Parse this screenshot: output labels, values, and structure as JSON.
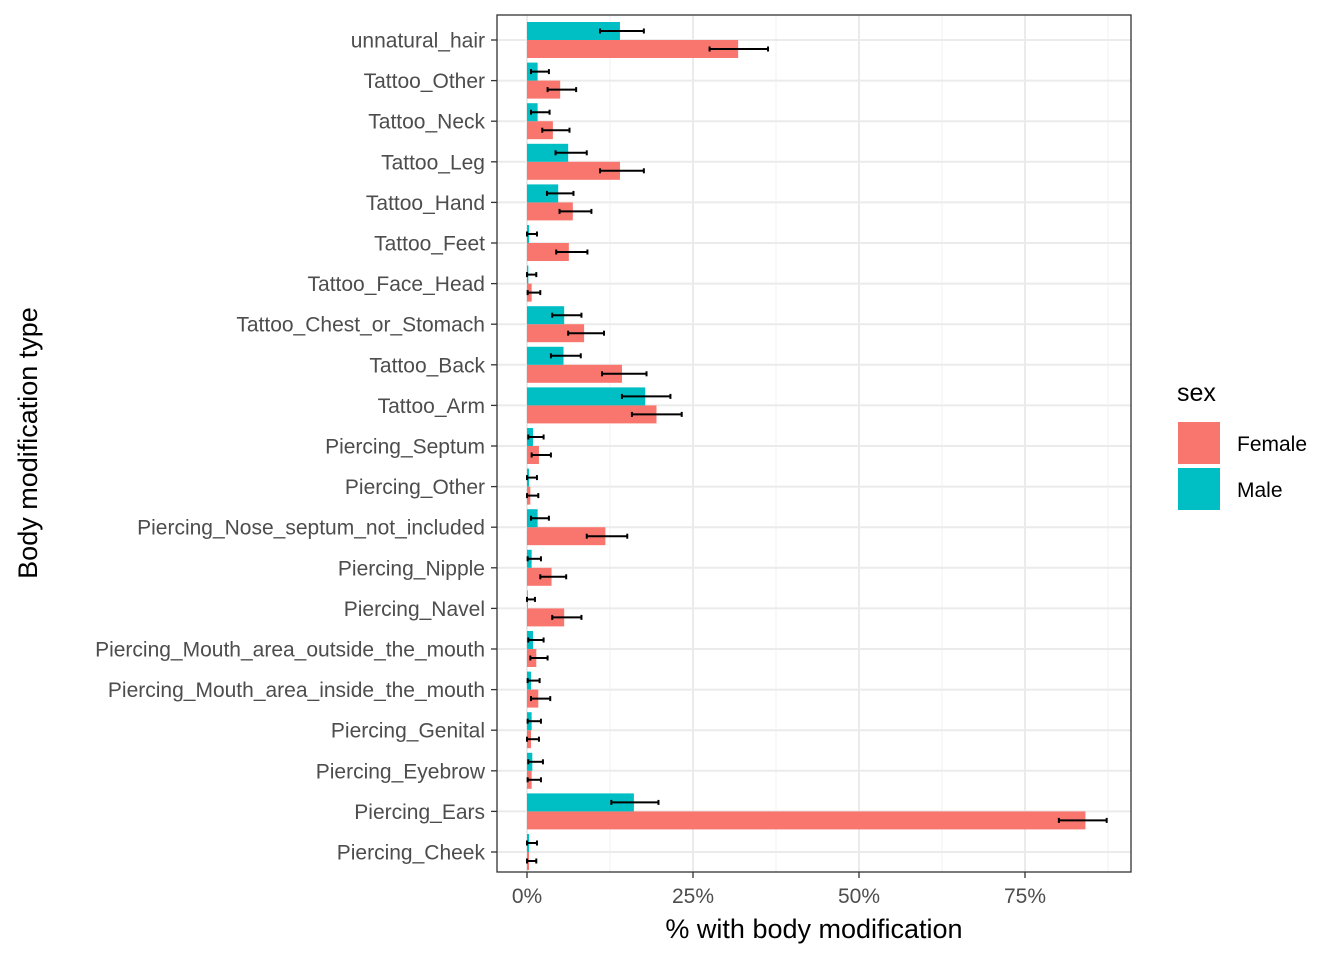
{
  "chart_data": {
    "type": "bar",
    "orientation": "horizontal",
    "title": "",
    "xlabel": "% with body modification",
    "ylabel": "Body modification type",
    "xlim": [
      -4,
      91
    ],
    "xticks": [
      0,
      25,
      50,
      75
    ],
    "xtick_labels": [
      "0%",
      "25%",
      "50%",
      "75%"
    ],
    "grid": true,
    "legend": {
      "title": "sex",
      "position": "right"
    },
    "categories": [
      "unnatural_hair",
      "Tattoo_Other",
      "Tattoo_Neck",
      "Tattoo_Leg",
      "Tattoo_Hand",
      "Tattoo_Feet",
      "Tattoo_Face_Head",
      "Tattoo_Chest_or_Stomach",
      "Tattoo_Back",
      "Tattoo_Arm",
      "Piercing_Septum",
      "Piercing_Other",
      "Piercing_Nose_septum_not_included",
      "Piercing_Nipple",
      "Piercing_Navel",
      "Piercing_Mouth_area_outside_the_mouth",
      "Piercing_Mouth_area_inside_the_mouth",
      "Piercing_Genital",
      "Piercing_Eyebrow",
      "Piercing_Ears",
      "Piercing_Cheek"
    ],
    "series": [
      {
        "name": "Female",
        "color": "#F8766D",
        "values": [
          31.8,
          5.0,
          3.9,
          14.0,
          6.9,
          6.3,
          0.7,
          8.6,
          14.3,
          19.5,
          1.8,
          0.5,
          11.8,
          3.7,
          5.6,
          1.4,
          1.7,
          0.6,
          0.7,
          84.1,
          0.3
        ],
        "err_low": [
          27.5,
          3.1,
          2.3,
          11.0,
          4.9,
          4.4,
          0.1,
          6.2,
          11.3,
          15.8,
          0.7,
          0.0,
          9.0,
          2.0,
          3.8,
          0.5,
          0.6,
          0.0,
          0.1,
          80.1,
          0.0
        ],
        "err_high": [
          36.3,
          7.4,
          6.4,
          17.6,
          9.7,
          9.1,
          2.0,
          11.6,
          18.0,
          23.3,
          3.6,
          1.7,
          15.1,
          5.9,
          8.2,
          3.1,
          3.5,
          1.8,
          2.1,
          87.3,
          1.4
        ]
      },
      {
        "name": "Male",
        "color": "#00BFC4",
        "values": [
          14.0,
          1.6,
          1.6,
          6.2,
          4.7,
          0.3,
          0.2,
          5.6,
          5.5,
          17.8,
          0.9,
          0.3,
          1.6,
          0.7,
          0.1,
          0.9,
          0.6,
          0.7,
          0.8,
          16.1,
          0.3
        ],
        "err_low": [
          11.0,
          0.6,
          0.6,
          4.3,
          3.0,
          0.0,
          0.0,
          3.8,
          3.6,
          14.3,
          0.2,
          0.0,
          0.6,
          0.1,
          0.0,
          0.2,
          0.1,
          0.1,
          0.2,
          12.7,
          0.0
        ],
        "err_high": [
          17.6,
          3.3,
          3.4,
          9.0,
          7.0,
          1.5,
          1.4,
          8.2,
          8.1,
          21.6,
          2.5,
          1.5,
          3.3,
          2.1,
          1.2,
          2.5,
          1.9,
          2.1,
          2.4,
          19.8,
          1.5
        ]
      }
    ]
  }
}
